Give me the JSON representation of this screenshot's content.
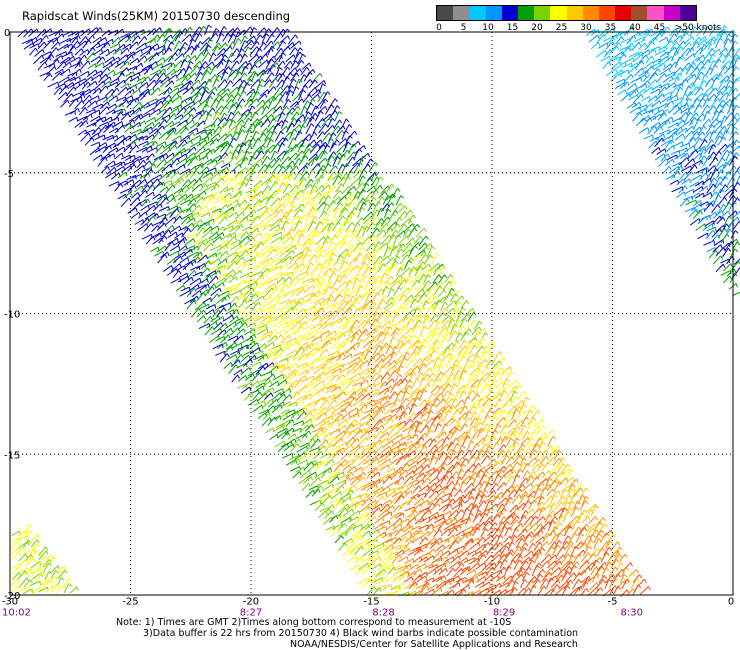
{
  "header": {
    "title": "Rapidscat Winds(25KM) 20150730 descending"
  },
  "color_scale": {
    "labels": [
      "0",
      "5",
      "10",
      "15",
      "20",
      "25",
      "30",
      "35",
      "40",
      "45",
      ">50 knots"
    ],
    "colors": [
      "#4a4a4a",
      "#8f8f8f",
      "#00c8ff",
      "#0096ff",
      "#0000d2",
      "#00a000",
      "#78d200",
      "#ffff00",
      "#ffc800",
      "#ff8c00",
      "#ff4600",
      "#e60000",
      "#a05028",
      "#ff50c8",
      "#c800c8",
      "#500096"
    ]
  },
  "map": {
    "lon_range": [
      -30,
      0
    ],
    "lat_range": [
      -20,
      0
    ],
    "x_ticks": [
      "-30",
      "-25",
      "-20",
      "-15",
      "-10",
      "-5",
      "0"
    ],
    "y_ticks": [
      "0",
      "-5",
      "-10",
      "-15",
      "-20"
    ],
    "time_labels": [
      {
        "text": "10:02",
        "lon": -30
      },
      {
        "text": "8:27",
        "lon": -20
      },
      {
        "text": "8:28",
        "lon": -14.5
      },
      {
        "text": "8:29",
        "lon": -9.5
      },
      {
        "text": "8:30",
        "lon": -4.2
      }
    ],
    "swaths": [
      {
        "name": "main-swath",
        "top_lon": [
          -29.8,
          -18.5
        ],
        "bottom_lon": [
          -15.2,
          -3.8
        ],
        "lat_top": -0.1,
        "lat_bottom": -20
      },
      {
        "name": "east-swath",
        "top_lon": [
          -6.2,
          0
        ],
        "bottom_lon": [
          0,
          0
        ],
        "lat_top": -0.1,
        "lat_bottom": -9.5
      },
      {
        "name": "southwest-swath",
        "top_lon": [
          -30,
          -29.4
        ],
        "bottom_lon": [
          -30,
          -27.3
        ],
        "lat_top": -17.8,
        "lat_bottom": -20
      }
    ]
  },
  "notes": {
    "line1": "Note: 1) Times are GMT 2)Times along bottom correspond to measurement at -10S",
    "line2": "3)Data buffer is 22 hrs from 20150730 4) Black wind barbs indicate possible contamination",
    "line3": "NOAA/NESDIS/Center for Satellite Applications and Research"
  }
}
